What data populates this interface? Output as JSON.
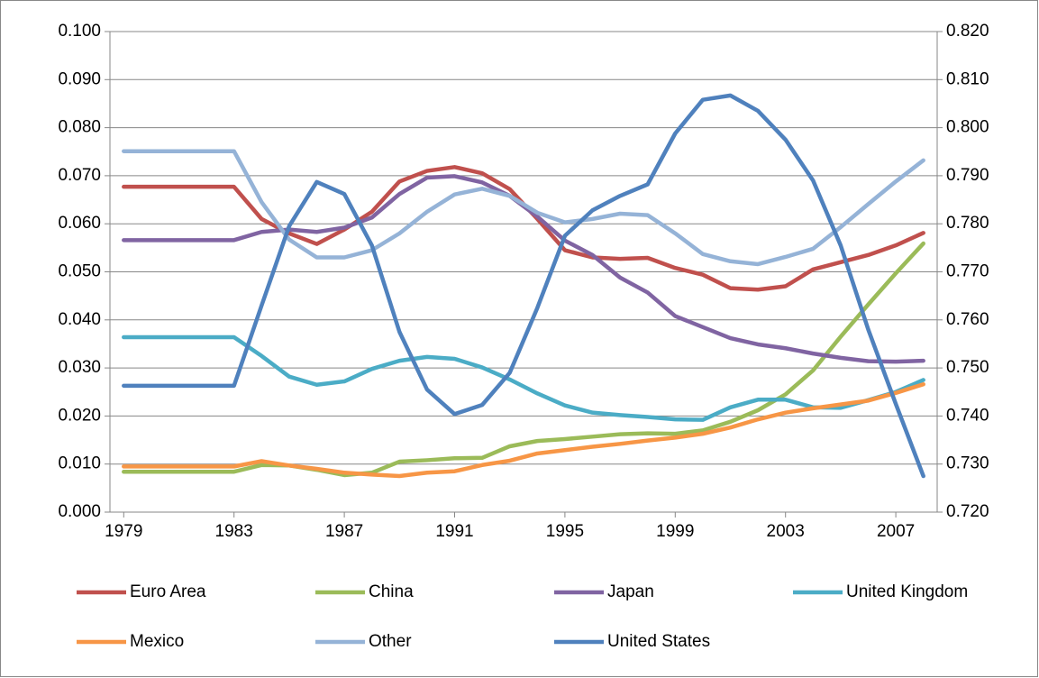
{
  "chart_data": {
    "type": "line",
    "x": [
      1979,
      1980,
      1981,
      1982,
      1983,
      1984,
      1985,
      1986,
      1987,
      1988,
      1989,
      1990,
      1991,
      1992,
      1993,
      1994,
      1995,
      1996,
      1997,
      1998,
      1999,
      2000,
      2001,
      2002,
      2003,
      2004,
      2005,
      2006,
      2007,
      2008
    ],
    "xlim": [
      1978.5,
      2008.5
    ],
    "xticks": [
      1979,
      1983,
      1987,
      1991,
      1995,
      1999,
      2003,
      2007
    ],
    "ylim": [
      0,
      0.1
    ],
    "yticks": [
      {
        "value": 0,
        "label": "0.000"
      },
      {
        "value": 0.01,
        "label": "0.010"
      },
      {
        "value": 0.02,
        "label": "0.020"
      },
      {
        "value": 0.03,
        "label": "0.030"
      },
      {
        "value": 0.04,
        "label": "0.040"
      },
      {
        "value": 0.05,
        "label": "0.050"
      },
      {
        "value": 0.06,
        "label": "0.060"
      },
      {
        "value": 0.07,
        "label": "0.070"
      },
      {
        "value": 0.08,
        "label": "0.080"
      },
      {
        "value": 0.09,
        "label": "0.090"
      },
      {
        "value": 0.1,
        "label": "0.100"
      }
    ],
    "y2lim": [
      0.72,
      0.82
    ],
    "y2ticks": [
      {
        "value": 0.72,
        "label": "0.720"
      },
      {
        "value": 0.73,
        "label": "0.730"
      },
      {
        "value": 0.74,
        "label": "0.740"
      },
      {
        "value": 0.75,
        "label": "0.750"
      },
      {
        "value": 0.76,
        "label": "0.760"
      },
      {
        "value": 0.77,
        "label": "0.770"
      },
      {
        "value": 0.78,
        "label": "0.780"
      },
      {
        "value": 0.79,
        "label": "0.790"
      },
      {
        "value": 0.8,
        "label": "0.800"
      },
      {
        "value": 0.81,
        "label": "0.810"
      },
      {
        "value": 0.82,
        "label": "0.820"
      }
    ],
    "grid": true,
    "legend": "bottom",
    "series": [
      {
        "name": "Euro Area",
        "color": "#c0504d",
        "values": [
          0.0677,
          0.0677,
          0.0677,
          0.0677,
          0.0677,
          0.061,
          0.058,
          0.0558,
          0.0588,
          0.0625,
          0.0688,
          0.071,
          0.0718,
          0.0705,
          0.0672,
          0.061,
          0.0545,
          0.053,
          0.0527,
          0.0529,
          0.0508,
          0.0494,
          0.0466,
          0.0463,
          0.047,
          0.0505,
          0.052,
          0.0535,
          0.0555,
          0.0581
        ]
      },
      {
        "name": "China",
        "color": "#9bbb59",
        "values": [
          0.0084,
          0.0084,
          0.0084,
          0.0084,
          0.0084,
          0.0098,
          0.0097,
          0.0088,
          0.0077,
          0.0082,
          0.0105,
          0.0108,
          0.0112,
          0.0113,
          0.0137,
          0.0148,
          0.0152,
          0.0157,
          0.0162,
          0.0164,
          0.0163,
          0.017,
          0.0188,
          0.0212,
          0.0245,
          0.0295,
          0.0365,
          0.0432,
          0.0497,
          0.0559
        ]
      },
      {
        "name": "Japan",
        "color": "#8064a2",
        "values": [
          0.0566,
          0.0566,
          0.0566,
          0.0566,
          0.0566,
          0.0583,
          0.0588,
          0.0583,
          0.0592,
          0.0613,
          0.0662,
          0.0696,
          0.0699,
          0.0686,
          0.0658,
          0.0615,
          0.0565,
          0.0535,
          0.0488,
          0.0457,
          0.0408,
          0.0385,
          0.0362,
          0.0349,
          0.0341,
          0.033,
          0.0321,
          0.0314,
          0.0313,
          0.0315
        ]
      },
      {
        "name": "United Kingdom",
        "color": "#4bacc6",
        "values": [
          0.0364,
          0.0364,
          0.0364,
          0.0364,
          0.0364,
          0.0325,
          0.0282,
          0.0265,
          0.0272,
          0.0298,
          0.0315,
          0.0323,
          0.0319,
          0.0301,
          0.0276,
          0.0247,
          0.0222,
          0.0207,
          0.0202,
          0.0198,
          0.0193,
          0.0192,
          0.0218,
          0.0234,
          0.0234,
          0.0218,
          0.0217,
          0.0233,
          0.025,
          0.0275
        ]
      },
      {
        "name": "Mexico",
        "color": "#f79646",
        "values": [
          0.0095,
          0.0095,
          0.0095,
          0.0095,
          0.0095,
          0.0106,
          0.0097,
          0.009,
          0.0082,
          0.0078,
          0.0075,
          0.0082,
          0.0085,
          0.0098,
          0.0107,
          0.0122,
          0.0129,
          0.0136,
          0.0142,
          0.0149,
          0.0155,
          0.0163,
          0.0176,
          0.0193,
          0.0207,
          0.0216,
          0.0224,
          0.0232,
          0.0248,
          0.0266
        ]
      },
      {
        "name": "Other",
        "color": "#95b3d7",
        "values": [
          0.0751,
          0.0751,
          0.0751,
          0.0751,
          0.0751,
          0.0645,
          0.0567,
          0.053,
          0.053,
          0.0545,
          0.058,
          0.0625,
          0.0661,
          0.0673,
          0.0658,
          0.0623,
          0.0603,
          0.061,
          0.0621,
          0.0618,
          0.058,
          0.0537,
          0.0522,
          0.0516,
          0.0531,
          0.0548,
          0.0593,
          0.0641,
          0.0688,
          0.0732
        ]
      },
      {
        "name": "United States",
        "color": "#4f81bd",
        "axis": "y2",
        "values": [
          0.7463,
          0.7463,
          0.7463,
          0.7463,
          0.7463,
          0.763,
          0.7795,
          0.7887,
          0.7862,
          0.7755,
          0.7575,
          0.7455,
          0.7404,
          0.7423,
          0.749,
          0.7625,
          0.7775,
          0.7828,
          0.7858,
          0.7882,
          0.7988,
          0.8058,
          0.8067,
          0.8035,
          0.7975,
          0.789,
          0.7755,
          0.758,
          0.7425,
          0.7275
        ]
      }
    ]
  }
}
